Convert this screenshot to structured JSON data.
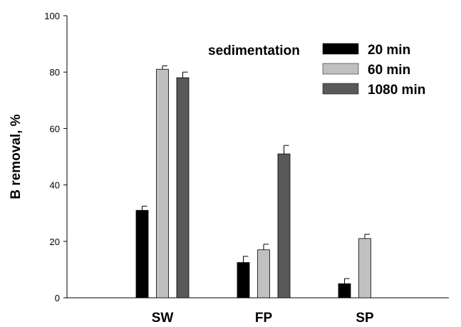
{
  "chart_data": {
    "type": "bar",
    "categories": [
      "SW",
      "FP",
      "SP"
    ],
    "ylabel": "B removal, %",
    "xlabel": "",
    "ylim": [
      0,
      100
    ],
    "yticks": [
      0,
      20,
      40,
      60,
      80,
      100
    ],
    "grid": false,
    "legend_title": "sedimentation",
    "legend_position": "top-right",
    "series": [
      {
        "name": "20 min",
        "color": "#000000",
        "values": [
          31,
          12.5,
          5
        ],
        "errors": [
          1.5,
          2.2,
          1.8
        ]
      },
      {
        "name": "60 min",
        "color": "#c0c0c0",
        "values": [
          81,
          17,
          21
        ],
        "errors": [
          1.2,
          2.0,
          1.5
        ]
      },
      {
        "name": "1080 min",
        "color": "#595959",
        "values": [
          78,
          51,
          null
        ],
        "errors": [
          2.0,
          3.0,
          null
        ]
      }
    ]
  }
}
